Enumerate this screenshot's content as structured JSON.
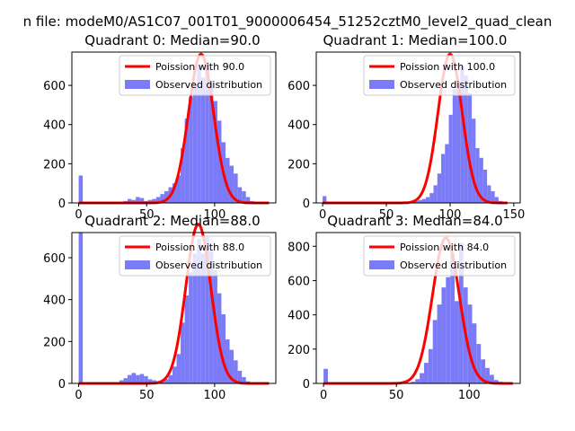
{
  "figure": {
    "suptitle": "n file: modeM0/AS1C07_001T01_9000006454_51252cztM0_level2_quad_clean"
  },
  "colors": {
    "histogram": "#7b7bf7",
    "poisson": "#ff0000",
    "axes": "#000000"
  },
  "chart_data": [
    {
      "type": "bar",
      "title": "Quadrant 0: Median=90.0",
      "legend": {
        "placement": "top-right",
        "entries": [
          "Poission with 90.0",
          "Observed distribution"
        ]
      },
      "xlim": [
        -5,
        145
      ],
      "ylim": [
        0,
        770
      ],
      "xticks": [
        0,
        50,
        100
      ],
      "yticks": [
        0,
        200,
        400,
        600
      ],
      "series": [
        {
          "name": "Poission with 90.0",
          "type": "line",
          "mean": 90.0,
          "sd": 9.2,
          "amplitude": 760,
          "x_range": [
            0,
            140
          ],
          "y": []
        },
        {
          "name": "Observed distribution",
          "type": "histogram",
          "x": [
            0,
            3,
            6,
            9,
            12,
            15,
            18,
            21,
            24,
            27,
            30,
            33,
            36,
            39,
            42,
            45,
            48,
            51,
            54,
            57,
            60,
            63,
            66,
            69,
            72,
            75,
            78,
            81,
            84,
            87,
            90,
            93,
            96,
            99,
            102,
            105,
            108,
            111,
            114,
            117,
            120,
            123,
            126,
            129,
            132,
            135,
            138
          ],
          "bin_width": 3,
          "values": [
            140,
            5,
            0,
            0,
            0,
            0,
            0,
            0,
            0,
            0,
            5,
            10,
            20,
            15,
            30,
            25,
            10,
            15,
            20,
            30,
            45,
            60,
            80,
            100,
            140,
            280,
            430,
            540,
            610,
            700,
            640,
            720,
            610,
            520,
            420,
            310,
            230,
            190,
            150,
            80,
            60,
            30,
            10,
            5,
            0,
            0,
            0
          ]
        }
      ]
    },
    {
      "type": "bar",
      "title": "Quadrant 1: Median=100.0",
      "legend": {
        "placement": "top-right",
        "entries": [
          "Poission with 100.0",
          "Observed distribution"
        ]
      },
      "xlim": [
        -5,
        155
      ],
      "ylim": [
        0,
        770
      ],
      "xticks": [
        0,
        50,
        100,
        150
      ],
      "yticks": [
        0,
        200,
        400,
        600
      ],
      "series": [
        {
          "name": "Poission with 100.0",
          "type": "line",
          "mean": 100.0,
          "sd": 9.5,
          "amplitude": 760,
          "x_range": [
            0,
            145
          ],
          "y": []
        },
        {
          "name": "Observed distribution",
          "type": "histogram",
          "x": [
            0,
            3,
            6,
            9,
            12,
            15,
            18,
            21,
            24,
            27,
            30,
            33,
            36,
            39,
            42,
            45,
            48,
            51,
            54,
            57,
            60,
            63,
            66,
            69,
            72,
            75,
            78,
            81,
            84,
            87,
            90,
            93,
            96,
            99,
            102,
            105,
            108,
            111,
            114,
            117,
            120,
            123,
            126,
            129,
            132,
            135,
            138,
            141
          ],
          "bin_width": 3,
          "values": [
            35,
            0,
            0,
            0,
            0,
            0,
            0,
            0,
            0,
            0,
            0,
            0,
            0,
            0,
            0,
            0,
            0,
            0,
            0,
            0,
            0,
            0,
            0,
            5,
            10,
            15,
            20,
            30,
            50,
            90,
            150,
            250,
            300,
            450,
            580,
            620,
            700,
            650,
            560,
            430,
            280,
            230,
            170,
            90,
            60,
            30,
            10,
            5
          ]
        }
      ]
    },
    {
      "type": "bar",
      "title": "Quadrant 2: Median=88.0",
      "legend": {
        "placement": "top-right",
        "entries": [
          "Poission with 88.0",
          "Observed distribution"
        ]
      },
      "xlim": [
        -5,
        145
      ],
      "ylim": [
        0,
        720
      ],
      "xticks": [
        0,
        50,
        100
      ],
      "yticks": [
        0,
        200,
        400,
        600
      ],
      "series": [
        {
          "name": "Poission with 88.0",
          "type": "line",
          "mean": 88.0,
          "sd": 9.2,
          "amplitude": 760,
          "x_range": [
            0,
            140
          ],
          "y": []
        },
        {
          "name": "Observed distribution",
          "type": "histogram",
          "x": [
            0,
            3,
            6,
            9,
            12,
            15,
            18,
            21,
            24,
            27,
            30,
            33,
            36,
            39,
            42,
            45,
            48,
            51,
            54,
            57,
            60,
            63,
            66,
            69,
            72,
            75,
            78,
            81,
            84,
            87,
            90,
            93,
            96,
            99,
            102,
            105,
            108,
            111,
            114,
            117,
            120,
            123,
            126,
            129,
            132,
            135,
            138
          ],
          "bin_width": 3,
          "values": [
            720,
            0,
            0,
            0,
            0,
            0,
            0,
            0,
            0,
            5,
            15,
            25,
            40,
            50,
            40,
            45,
            35,
            20,
            15,
            10,
            15,
            20,
            40,
            80,
            140,
            290,
            420,
            530,
            620,
            690,
            620,
            700,
            630,
            540,
            430,
            330,
            210,
            160,
            110,
            60,
            30,
            10,
            5,
            0,
            0,
            0,
            0
          ]
        }
      ]
    },
    {
      "type": "bar",
      "title": "Quadrant 3: Median=84.0",
      "legend": {
        "placement": "top-right",
        "entries": [
          "Poission with 84.0",
          "Observed distribution"
        ]
      },
      "xlim": [
        -5,
        135
      ],
      "ylim": [
        0,
        880
      ],
      "xticks": [
        0,
        50,
        100
      ],
      "yticks": [
        0,
        200,
        400,
        600,
        800
      ],
      "series": [
        {
          "name": "Poission with 84.0",
          "type": "line",
          "mean": 84.0,
          "sd": 9.2,
          "amplitude": 850,
          "x_range": [
            0,
            130
          ],
          "y": []
        },
        {
          "name": "Observed distribution",
          "type": "histogram",
          "x": [
            0,
            3,
            6,
            9,
            12,
            15,
            18,
            21,
            24,
            27,
            30,
            33,
            36,
            39,
            42,
            45,
            48,
            51,
            54,
            57,
            60,
            63,
            66,
            69,
            72,
            75,
            78,
            81,
            84,
            87,
            90,
            93,
            96,
            99,
            102,
            105,
            108,
            111,
            114,
            117,
            120,
            123,
            126
          ],
          "bin_width": 3,
          "values": [
            85,
            0,
            0,
            0,
            0,
            0,
            0,
            0,
            0,
            0,
            0,
            0,
            0,
            0,
            0,
            0,
            0,
            0,
            0,
            5,
            10,
            25,
            60,
            120,
            200,
            370,
            460,
            560,
            620,
            760,
            480,
            820,
            560,
            460,
            350,
            230,
            140,
            90,
            50,
            20,
            10,
            5,
            0
          ]
        }
      ]
    }
  ]
}
